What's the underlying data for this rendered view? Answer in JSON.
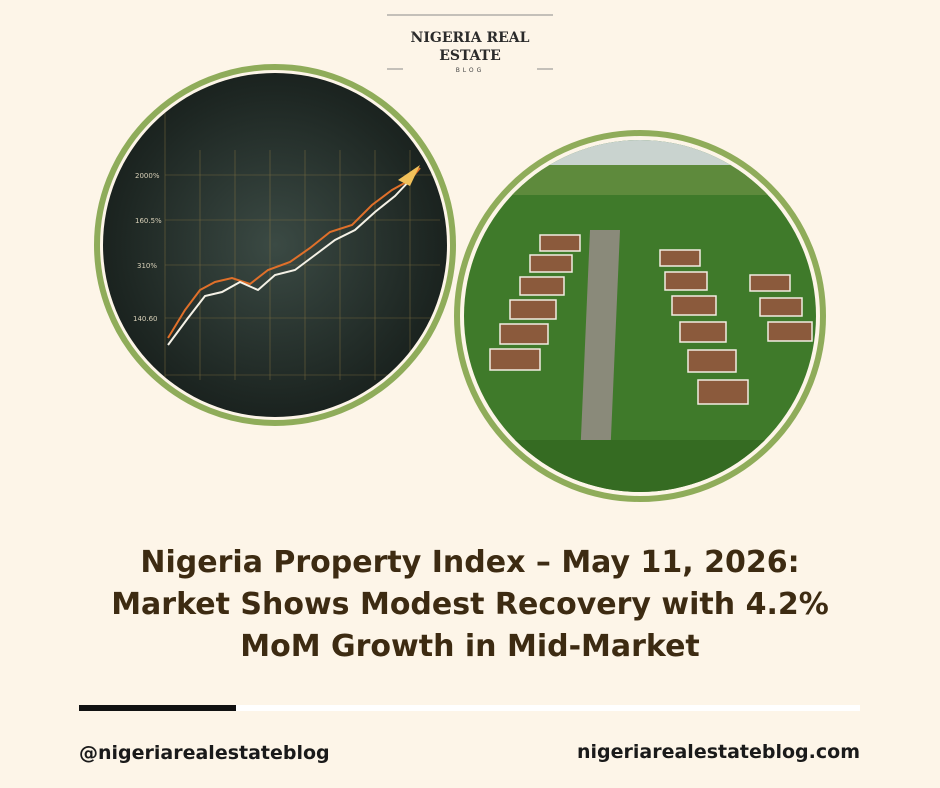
{
  "logo": {
    "title_lines": [
      "NIGERIA REAL",
      "ESTATE"
    ],
    "subtitle": "BLOG"
  },
  "chart_image": {
    "y_labels": [
      "2000%",
      "160.5%",
      "310%",
      "140.60"
    ]
  },
  "headline": {
    "lines": [
      "Nigeria Property Index – May 11, 2026:",
      "Market Shows Modest Recovery with 4.2%",
      "MoM Growth in Mid-Market"
    ]
  },
  "footer": {
    "handle": "@nigeriarealestateblog",
    "website": "nigeriarealestateblog.com"
  }
}
